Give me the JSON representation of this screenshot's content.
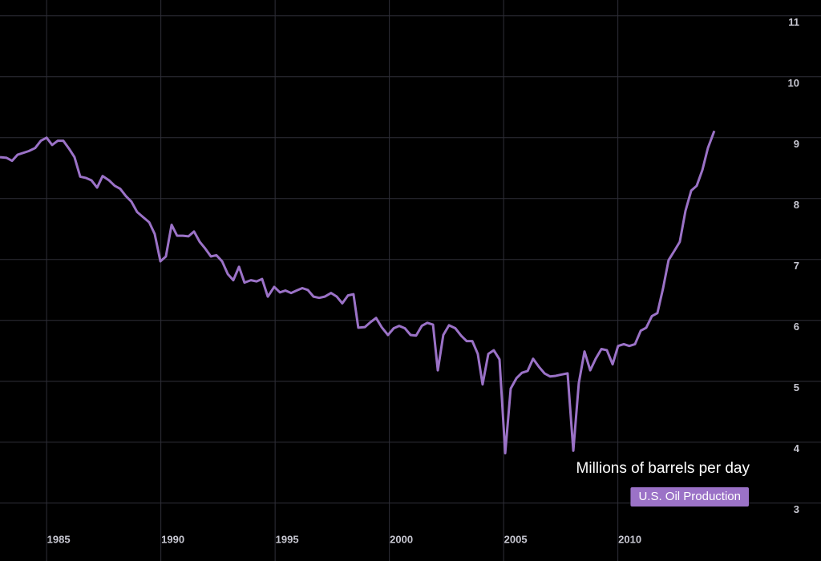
{
  "chart_data": {
    "type": "line",
    "ylabel": "Millions of barrels per day",
    "xlim": [
      1982.96,
      2018.89
    ],
    "ylim": [
      2.05,
      11.26
    ],
    "xticks": [
      1985,
      1990,
      1995,
      2000,
      2005,
      2010
    ],
    "yticks": [
      3,
      4,
      5,
      6,
      7,
      8,
      9,
      10,
      11
    ],
    "grid": true,
    "legend": "lower right",
    "x": [
      1982.96,
      1983.24,
      1983.49,
      1983.73,
      1984.22,
      1984.5,
      1984.75,
      1985.0,
      1985.24,
      1985.49,
      1985.73,
      1985.98,
      1986.22,
      1986.47,
      1986.71,
      1986.96,
      1987.21,
      1987.45,
      1987.73,
      1987.98,
      1988.22,
      1988.47,
      1988.71,
      1988.96,
      1989.21,
      1989.49,
      1989.73,
      1989.98,
      1990.22,
      1990.47,
      1990.71,
      1990.96,
      1991.21,
      1991.45,
      1991.7,
      1991.94,
      1992.19,
      1992.43,
      1992.68,
      1992.93,
      1993.17,
      1993.42,
      1993.66,
      1993.94,
      1994.19,
      1994.43,
      1994.68,
      1994.96,
      1995.21,
      1995.45,
      1995.7,
      1995.94,
      1996.19,
      1996.43,
      1996.68,
      1996.93,
      1997.17,
      1997.45,
      1997.7,
      1997.94,
      1998.19,
      1998.43,
      1998.64,
      1998.93,
      1999.17,
      1999.42,
      1999.66,
      1999.94,
      2000.19,
      2000.43,
      2000.68,
      2000.93,
      2001.17,
      2001.42,
      2001.66,
      2001.91,
      2002.12,
      2002.36,
      2002.61,
      2002.89,
      2003.14,
      2003.38,
      2003.63,
      2003.87,
      2004.08,
      2004.33,
      2004.57,
      2004.82,
      2005.07,
      2005.31,
      2005.56,
      2005.8,
      2006.05,
      2006.29,
      2006.54,
      2006.79,
      2007.03,
      2007.28,
      2007.52,
      2007.8,
      2008.05,
      2008.29,
      2008.54,
      2008.79,
      2009.03,
      2009.28,
      2009.52,
      2009.77,
      2010.01,
      2010.26,
      2010.5,
      2010.75,
      2011.0,
      2011.24,
      2011.49,
      2011.73,
      2011.98,
      2012.22,
      2012.47,
      2012.71,
      2012.96,
      2013.21,
      2013.45,
      2013.7,
      2013.94,
      2014.22
    ],
    "series": [
      {
        "name": "U.S. Oil Production",
        "color": "#9b72c7",
        "values": [
          8.68,
          8.67,
          8.62,
          8.72,
          8.78,
          8.83,
          8.95,
          9.0,
          8.88,
          8.95,
          8.95,
          8.82,
          8.68,
          8.36,
          8.34,
          8.3,
          8.18,
          8.37,
          8.3,
          8.21,
          8.16,
          8.04,
          7.95,
          7.78,
          7.7,
          7.61,
          7.42,
          6.97,
          7.05,
          7.57,
          7.39,
          7.39,
          7.38,
          7.46,
          7.29,
          7.18,
          7.05,
          7.07,
          6.97,
          6.76,
          6.66,
          6.88,
          6.62,
          6.66,
          6.64,
          6.68,
          6.39,
          6.55,
          6.46,
          6.49,
          6.45,
          6.49,
          6.53,
          6.5,
          6.39,
          6.37,
          6.39,
          6.45,
          6.39,
          6.28,
          6.41,
          6.43,
          5.88,
          5.89,
          5.97,
          6.04,
          5.89,
          5.76,
          5.87,
          5.91,
          5.87,
          5.76,
          5.75,
          5.91,
          5.96,
          5.93,
          5.18,
          5.76,
          5.92,
          5.87,
          5.75,
          5.66,
          5.66,
          5.45,
          4.95,
          5.45,
          5.51,
          5.36,
          3.82,
          4.88,
          5.05,
          5.14,
          5.17,
          5.37,
          5.24,
          5.13,
          5.08,
          5.09,
          5.11,
          5.13,
          3.86,
          4.97,
          5.49,
          5.18,
          5.37,
          5.53,
          5.51,
          5.28,
          5.58,
          5.61,
          5.58,
          5.61,
          5.83,
          5.88,
          6.07,
          6.12,
          6.53,
          6.99,
          7.14,
          7.29,
          7.8,
          8.13,
          8.21,
          8.47,
          8.83,
          9.11
        ]
      }
    ]
  }
}
